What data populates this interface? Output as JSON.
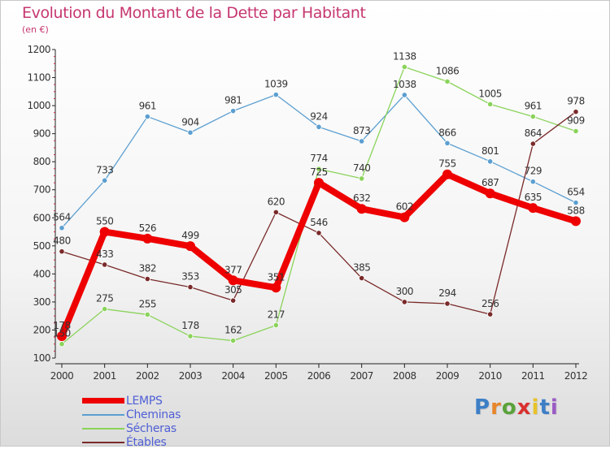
{
  "chart_data": {
    "type": "line",
    "title": "Evolution du Montant de la Dette par Habitant",
    "subtitle": "(en €)",
    "xlabel": "",
    "ylabel": "",
    "ylim": [
      100,
      1200
    ],
    "yticks": [
      100,
      200,
      300,
      400,
      500,
      600,
      700,
      800,
      900,
      1000,
      1100,
      1200
    ],
    "x": [
      "2000",
      "2001",
      "2002",
      "2003",
      "2004",
      "2005",
      "2006",
      "2007",
      "2008",
      "2009",
      "2010",
      "2011",
      "2012"
    ],
    "grid": false,
    "legend_position": "bottom-left",
    "series": [
      {
        "name": "Cheminas",
        "color": "#5c9fd1",
        "values": [
          564,
          733,
          961,
          904,
          981,
          1039,
          924,
          873,
          1038,
          866,
          801,
          729,
          654
        ],
        "labels": [
          "564",
          "733",
          "961",
          "904",
          "981",
          "1039",
          "924",
          "873",
          "1038",
          "866",
          "801",
          "729",
          "654"
        ]
      },
      {
        "name": "Sécheras",
        "color": "#8bd35b",
        "values": [
          150,
          275,
          255,
          178,
          162,
          217,
          774,
          740,
          1138,
          1086,
          1005,
          961,
          909
        ],
        "labels": [
          "150",
          "275",
          "255",
          "178",
          "162",
          "217",
          "774",
          "740",
          "1138",
          "1086",
          "1005",
          "961",
          "909"
        ]
      },
      {
        "name": "Étables",
        "color": "#7a2a2a",
        "values": [
          480,
          433,
          382,
          353,
          305,
          620,
          546,
          385,
          300,
          294,
          256,
          864,
          978
        ],
        "labels": [
          "480",
          "433",
          "382",
          "353",
          "305",
          "620",
          "546",
          "385",
          "300",
          "294",
          "256",
          "864",
          "978"
        ]
      },
      {
        "name": "LEMPS",
        "color": "#ee0000",
        "values": [
          178,
          550,
          526,
          499,
          377,
          351,
          725,
          632,
          602,
          755,
          687,
          635,
          588
        ],
        "labels": [
          "178",
          "550",
          "526",
          "499",
          "377",
          "351",
          "725",
          "632",
          "602",
          "755",
          "687",
          "635",
          "588"
        ]
      }
    ],
    "legend": [
      {
        "name": "LEMPS",
        "color": "#ee0000"
      },
      {
        "name": "Cheminas",
        "color": "#5c9fd1"
      },
      {
        "name": "Sécheras",
        "color": "#8bd35b"
      },
      {
        "name": "Étables",
        "color": "#7a2a2a"
      }
    ]
  },
  "logo": {
    "text": "Proxiti",
    "letter_colors": [
      "#3d7fc7",
      "#e8862a",
      "#5aa23a",
      "#d9312f",
      "#e8c22a",
      "#3d7fc7",
      "#9a5bc4"
    ]
  }
}
